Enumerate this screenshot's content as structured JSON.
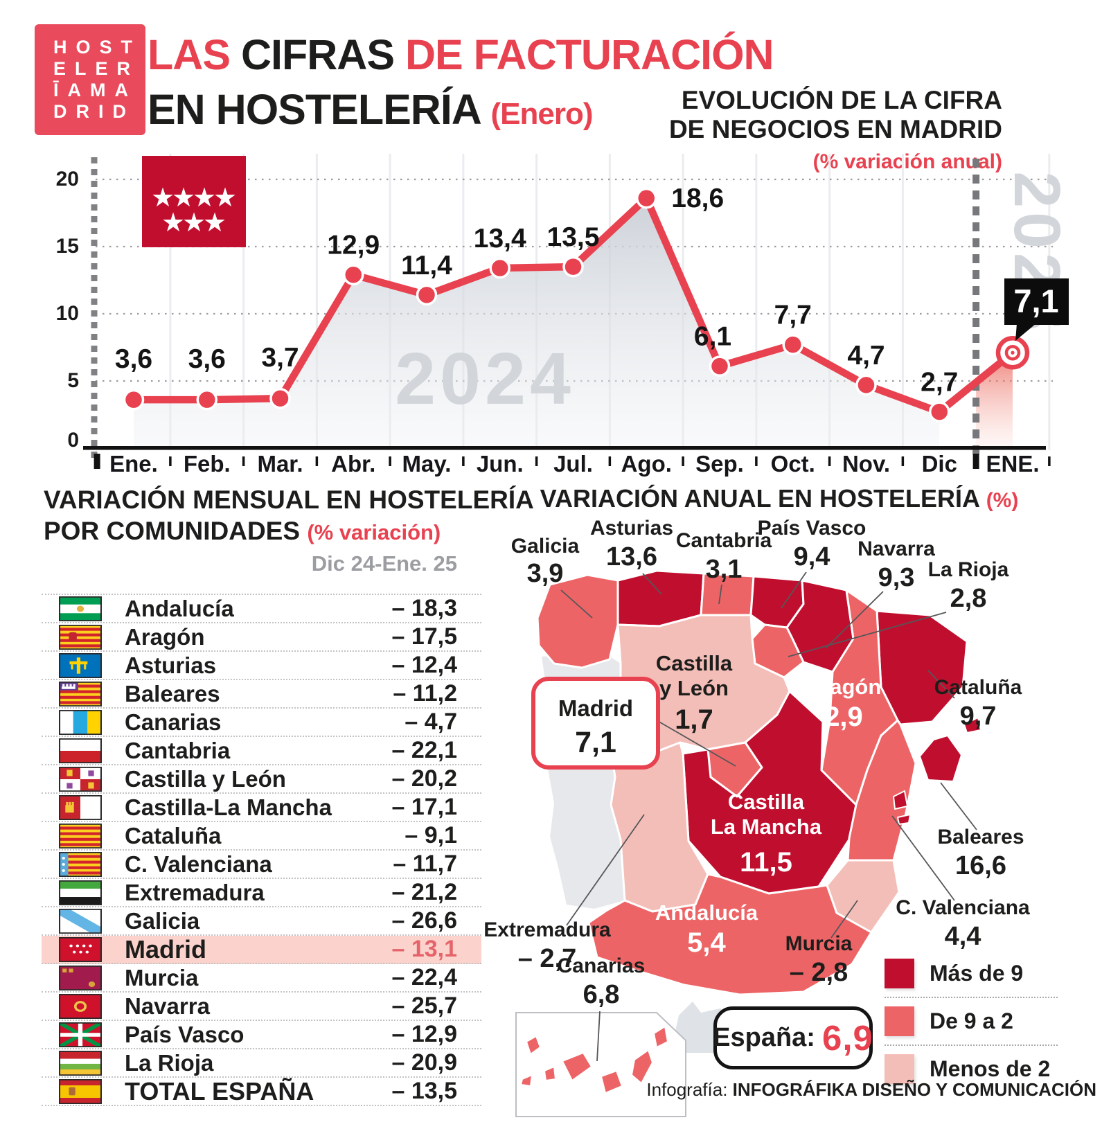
{
  "logo": {
    "rows": [
      "HOST",
      "ELER",
      "ĪAMA",
      "DRID"
    ]
  },
  "header": {
    "title": {
      "part1": "LAS",
      "part2": "CIFRAS",
      "part3": "DE FACTURACIÓN",
      "line2": "EN HOSTELERÍA",
      "line2_note": "(Enero)"
    },
    "subtitle_line1": "EVOLUCIÓN DE LA CIFRA",
    "subtitle_line2": "DE NEGOCIOS EN MADRID",
    "subtitle_note": "(% variación anual)"
  },
  "section_titles": {
    "table_line1": "VARIACIÓN MENSUAL EN HOSTELERÍA",
    "table_line2": "POR COMUNIDADES",
    "table_note": "(% variación)",
    "map_title": "VARIACIÓN ANUAL EN HOSTELERÍA",
    "map_note": "(%)"
  },
  "chart_data": [
    {
      "type": "line",
      "title": "EVOLUCIÓN DE LA CIFRA DE NEGOCIOS EN MADRID",
      "unit": "(% variación anual)",
      "categories": [
        "Ene.",
        "Feb.",
        "Mar.",
        "Abr.",
        "May.",
        "Jun.",
        "Jul.",
        "Ago.",
        "Sep.",
        "Oct.",
        "Nov.",
        "Dic",
        "ENE."
      ],
      "values": [
        3.6,
        3.6,
        3.7,
        12.9,
        11.4,
        13.4,
        13.5,
        18.6,
        6.1,
        7.7,
        4.7,
        2.7,
        7.1
      ],
      "value_labels": [
        "3,6",
        "3,6",
        "3,7",
        "12,9",
        "11,4",
        "13,4",
        "13,5",
        "18,6",
        "6,1",
        "7,7",
        "4,7",
        "2,7",
        "7,1"
      ],
      "ylim": [
        0,
        20
      ],
      "yticks": [
        0,
        5,
        10,
        15,
        20
      ],
      "grid": true,
      "year_left": "2024",
      "year_right": "2025",
      "final_point_label": "7,1"
    },
    {
      "type": "table",
      "title": "VARIACIÓN MENSUAL EN HOSTELERÍA POR COMUNIDADES",
      "unit": "(% variación)",
      "column_header": "Dic 24-Ene. 25",
      "rows": [
        {
          "flag": "andalucia",
          "name": "Andalucía",
          "value": "– 18,3"
        },
        {
          "flag": "aragon",
          "name": "Aragón",
          "value": "– 17,5"
        },
        {
          "flag": "asturias",
          "name": "Asturias",
          "value": "– 12,4"
        },
        {
          "flag": "baleares",
          "name": "Baleares",
          "value": "– 11,2"
        },
        {
          "flag": "canarias",
          "name": "Canarias",
          "value": "– 4,7"
        },
        {
          "flag": "cantabria",
          "name": "Cantabria",
          "value": "– 22,1"
        },
        {
          "flag": "castilla-leon",
          "name": "Castilla y León",
          "value": "– 20,2"
        },
        {
          "flag": "castilla-mancha",
          "name": "Castilla-La Mancha",
          "value": "– 17,1"
        },
        {
          "flag": "cataluna",
          "name": "Cataluña",
          "value": "– 9,1"
        },
        {
          "flag": "c-valenciana",
          "name": "C. Valenciana",
          "value": "– 11,7"
        },
        {
          "flag": "extremadura",
          "name": "Extremadura",
          "value": "– 21,2"
        },
        {
          "flag": "galicia",
          "name": "Galicia",
          "value": "– 26,6"
        },
        {
          "flag": "madrid",
          "name": "Madrid",
          "value": "– 13,1",
          "highlight": true
        },
        {
          "flag": "murcia",
          "name": "Murcia",
          "value": "– 22,4"
        },
        {
          "flag": "navarra",
          "name": "Navarra",
          "value": "– 25,7"
        },
        {
          "flag": "pais-vasco",
          "name": "País Vasco",
          "value": "– 12,9"
        },
        {
          "flag": "la-rioja",
          "name": "La Rioja",
          "value": "– 20,9"
        },
        {
          "flag": "espana",
          "name": "TOTAL ESPAÑA",
          "value": "– 13,5",
          "total": true
        }
      ]
    },
    {
      "type": "choropleth",
      "title": "VARIACIÓN ANUAL EN HOSTELERÍA",
      "unit": "(%)",
      "regions": [
        {
          "id": "galicia",
          "name": "Galicia",
          "value": "3,9",
          "bucket": "mid"
        },
        {
          "id": "asturias",
          "name": "Asturias",
          "value": "13,6",
          "bucket": "high"
        },
        {
          "id": "cantabria",
          "name": "Cantabria",
          "value": "3,1",
          "bucket": "mid"
        },
        {
          "id": "pais-vasco",
          "name": "País Vasco",
          "value": "9,4",
          "bucket": "high"
        },
        {
          "id": "navarra",
          "name": "Navarra",
          "value": "9,3",
          "bucket": "high"
        },
        {
          "id": "la-rioja",
          "name": "La Rioja",
          "value": "2,8",
          "bucket": "mid"
        },
        {
          "id": "cataluna",
          "name": "Cataluña",
          "value": "9,7",
          "bucket": "high"
        },
        {
          "id": "aragon",
          "name": "Aragón",
          "value": "2,9",
          "bucket": "mid"
        },
        {
          "id": "castilla-leon",
          "name": "Castilla y León",
          "name_lines": [
            "Castilla",
            "y León"
          ],
          "value": "1,7",
          "bucket": "low"
        },
        {
          "id": "madrid",
          "name": "Madrid",
          "value": "7,1",
          "bucket": "mid"
        },
        {
          "id": "castilla-mancha",
          "name": "Castilla La Mancha",
          "name_lines": [
            "Castilla",
            "La Mancha"
          ],
          "value": "11,5",
          "bucket": "high"
        },
        {
          "id": "extremadura",
          "name": "Extremadura",
          "value": "– 2,7",
          "bucket": "low"
        },
        {
          "id": "andalucia",
          "name": "Andalucía",
          "value": "5,4",
          "bucket": "mid"
        },
        {
          "id": "c-valenciana",
          "name": "C. Valenciana",
          "value": "4,4",
          "bucket": "mid"
        },
        {
          "id": "murcia",
          "name": "Murcia",
          "value": "– 2,8",
          "bucket": "low"
        },
        {
          "id": "baleares",
          "name": "Baleares",
          "value": "16,6",
          "bucket": "high"
        },
        {
          "id": "canarias",
          "name": "Canarias",
          "value": "6,8",
          "bucket": "mid"
        }
      ],
      "legend": [
        {
          "label": "Más de 9",
          "bucket": "high"
        },
        {
          "label": "De 9 a 2",
          "bucket": "mid"
        },
        {
          "label": "Menos de 2",
          "bucket": "low"
        }
      ],
      "total": {
        "label": "España:",
        "value": "6,9"
      }
    }
  ],
  "footer": {
    "label": "Infografía:",
    "credit": "INFOGRÁFIKA DISEÑO Y COMUNICACIÓN"
  },
  "colors": {
    "accent": "#e8414f",
    "flag_red": "#c20e2e",
    "dark_red": "#c00f2e",
    "mid_red": "#ed6466",
    "light_red": "#f4beb8",
    "highlight_bg": "#fbd3cc",
    "highlight_value": "#e5646c",
    "watermark": "#d2d5d9",
    "portugal": "#e6e8ec"
  }
}
